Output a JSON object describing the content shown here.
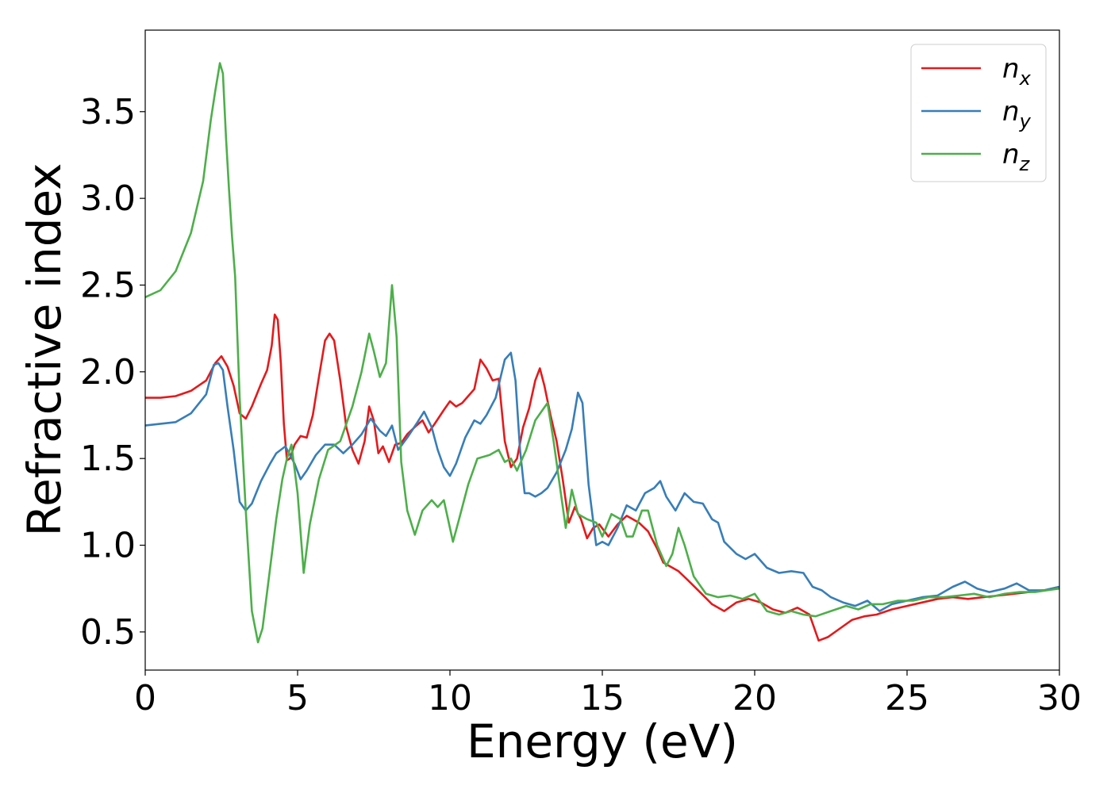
{
  "chart_data": {
    "type": "line",
    "title": "",
    "xlabel": "Energy (eV)",
    "ylabel": "Refractive index",
    "xlim": [
      0,
      30
    ],
    "ylim": [
      0.28,
      3.97
    ],
    "xticks": [
      "0",
      "5",
      "10",
      "15",
      "20",
      "25",
      "30"
    ],
    "yticks": [
      "0.5",
      "1.0",
      "1.5",
      "2.0",
      "2.5",
      "3.0",
      "3.5"
    ],
    "grid": false,
    "legend_position": "top-right",
    "series": [
      {
        "name": "n",
        "subscript": "x",
        "color": "#e41a1c",
        "points": [
          [
            0,
            1.85
          ],
          [
            0.5,
            1.85
          ],
          [
            1,
            1.86
          ],
          [
            1.5,
            1.89
          ],
          [
            2,
            1.95
          ],
          [
            2.3,
            2.05
          ],
          [
            2.5,
            2.09
          ],
          [
            2.7,
            2.03
          ],
          [
            2.9,
            1.92
          ],
          [
            3.1,
            1.76
          ],
          [
            3.3,
            1.73
          ],
          [
            3.5,
            1.8
          ],
          [
            3.8,
            1.93
          ],
          [
            4.0,
            2.01
          ],
          [
            4.15,
            2.15
          ],
          [
            4.25,
            2.33
          ],
          [
            4.35,
            2.3
          ],
          [
            4.45,
            2.05
          ],
          [
            4.55,
            1.7
          ],
          [
            4.65,
            1.49
          ],
          [
            4.75,
            1.5
          ],
          [
            4.9,
            1.58
          ],
          [
            5.1,
            1.63
          ],
          [
            5.3,
            1.62
          ],
          [
            5.5,
            1.75
          ],
          [
            5.7,
            1.97
          ],
          [
            5.9,
            2.18
          ],
          [
            6.05,
            2.22
          ],
          [
            6.2,
            2.18
          ],
          [
            6.4,
            1.95
          ],
          [
            6.6,
            1.68
          ],
          [
            6.8,
            1.55
          ],
          [
            7.0,
            1.47
          ],
          [
            7.2,
            1.6
          ],
          [
            7.35,
            1.8
          ],
          [
            7.5,
            1.72
          ],
          [
            7.65,
            1.53
          ],
          [
            7.8,
            1.57
          ],
          [
            8.0,
            1.48
          ],
          [
            8.2,
            1.58
          ],
          [
            8.4,
            1.59
          ],
          [
            8.6,
            1.64
          ],
          [
            8.9,
            1.69
          ],
          [
            9.1,
            1.72
          ],
          [
            9.3,
            1.65
          ],
          [
            9.5,
            1.7
          ],
          [
            9.8,
            1.78
          ],
          [
            10.0,
            1.83
          ],
          [
            10.2,
            1.8
          ],
          [
            10.4,
            1.82
          ],
          [
            10.6,
            1.86
          ],
          [
            10.8,
            1.9
          ],
          [
            11.0,
            2.07
          ],
          [
            11.2,
            2.02
          ],
          [
            11.4,
            1.95
          ],
          [
            11.6,
            1.96
          ],
          [
            11.8,
            1.6
          ],
          [
            12.0,
            1.45
          ],
          [
            12.2,
            1.5
          ],
          [
            12.4,
            1.68
          ],
          [
            12.6,
            1.79
          ],
          [
            12.8,
            1.95
          ],
          [
            12.95,
            2.02
          ],
          [
            13.1,
            1.92
          ],
          [
            13.3,
            1.75
          ],
          [
            13.5,
            1.6
          ],
          [
            13.7,
            1.38
          ],
          [
            13.9,
            1.13
          ],
          [
            14.1,
            1.22
          ],
          [
            14.3,
            1.15
          ],
          [
            14.5,
            1.04
          ],
          [
            14.7,
            1.1
          ],
          [
            14.9,
            1.12
          ],
          [
            15.2,
            1.05
          ],
          [
            15.5,
            1.12
          ],
          [
            15.8,
            1.17
          ],
          [
            16.0,
            1.15
          ],
          [
            16.2,
            1.13
          ],
          [
            16.5,
            1.08
          ],
          [
            16.8,
            0.98
          ],
          [
            17.0,
            0.9
          ],
          [
            17.2,
            0.88
          ],
          [
            17.5,
            0.85
          ],
          [
            17.8,
            0.8
          ],
          [
            18.2,
            0.73
          ],
          [
            18.6,
            0.66
          ],
          [
            19.0,
            0.62
          ],
          [
            19.4,
            0.67
          ],
          [
            19.8,
            0.69
          ],
          [
            20.2,
            0.67
          ],
          [
            20.6,
            0.63
          ],
          [
            21.0,
            0.61
          ],
          [
            21.4,
            0.64
          ],
          [
            21.8,
            0.6
          ],
          [
            22.1,
            0.45
          ],
          [
            22.4,
            0.47
          ],
          [
            22.8,
            0.52
          ],
          [
            23.2,
            0.57
          ],
          [
            23.6,
            0.59
          ],
          [
            24.0,
            0.6
          ],
          [
            24.5,
            0.63
          ],
          [
            25.0,
            0.65
          ],
          [
            25.5,
            0.67
          ],
          [
            26.0,
            0.69
          ],
          [
            26.5,
            0.7
          ],
          [
            27.0,
            0.69
          ],
          [
            27.5,
            0.7
          ],
          [
            28.0,
            0.71
          ],
          [
            28.5,
            0.72
          ],
          [
            29.0,
            0.73
          ],
          [
            29.5,
            0.74
          ],
          [
            30.0,
            0.76
          ]
        ]
      },
      {
        "name": "n",
        "subscript": "y",
        "color": "#377eb8",
        "points": [
          [
            0,
            1.69
          ],
          [
            0.5,
            1.7
          ],
          [
            1,
            1.71
          ],
          [
            1.5,
            1.76
          ],
          [
            2,
            1.87
          ],
          [
            2.25,
            2.04
          ],
          [
            2.4,
            2.05
          ],
          [
            2.55,
            2.01
          ],
          [
            2.7,
            1.8
          ],
          [
            2.9,
            1.55
          ],
          [
            3.1,
            1.25
          ],
          [
            3.3,
            1.2
          ],
          [
            3.5,
            1.24
          ],
          [
            3.8,
            1.37
          ],
          [
            4.1,
            1.47
          ],
          [
            4.3,
            1.53
          ],
          [
            4.6,
            1.57
          ],
          [
            4.9,
            1.47
          ],
          [
            5.1,
            1.38
          ],
          [
            5.3,
            1.43
          ],
          [
            5.6,
            1.52
          ],
          [
            5.9,
            1.58
          ],
          [
            6.2,
            1.58
          ],
          [
            6.5,
            1.53
          ],
          [
            6.8,
            1.58
          ],
          [
            7.1,
            1.64
          ],
          [
            7.4,
            1.73
          ],
          [
            7.7,
            1.66
          ],
          [
            7.9,
            1.63
          ],
          [
            8.1,
            1.69
          ],
          [
            8.3,
            1.55
          ],
          [
            8.6,
            1.62
          ],
          [
            8.9,
            1.7
          ],
          [
            9.15,
            1.77
          ],
          [
            9.4,
            1.68
          ],
          [
            9.6,
            1.55
          ],
          [
            9.8,
            1.45
          ],
          [
            10.0,
            1.4
          ],
          [
            10.2,
            1.47
          ],
          [
            10.5,
            1.62
          ],
          [
            10.8,
            1.72
          ],
          [
            11.0,
            1.7
          ],
          [
            11.2,
            1.75
          ],
          [
            11.5,
            1.85
          ],
          [
            11.8,
            2.07
          ],
          [
            12.0,
            2.11
          ],
          [
            12.15,
            1.95
          ],
          [
            12.3,
            1.55
          ],
          [
            12.45,
            1.3
          ],
          [
            12.6,
            1.3
          ],
          [
            12.8,
            1.28
          ],
          [
            13.0,
            1.3
          ],
          [
            13.2,
            1.33
          ],
          [
            13.5,
            1.42
          ],
          [
            13.8,
            1.55
          ],
          [
            14.0,
            1.67
          ],
          [
            14.2,
            1.88
          ],
          [
            14.35,
            1.82
          ],
          [
            14.55,
            1.35
          ],
          [
            14.8,
            1.0
          ],
          [
            15.0,
            1.02
          ],
          [
            15.2,
            1.0
          ],
          [
            15.5,
            1.1
          ],
          [
            15.8,
            1.23
          ],
          [
            16.1,
            1.2
          ],
          [
            16.4,
            1.3
          ],
          [
            16.7,
            1.33
          ],
          [
            16.9,
            1.37
          ],
          [
            17.1,
            1.28
          ],
          [
            17.4,
            1.2
          ],
          [
            17.7,
            1.3
          ],
          [
            18.0,
            1.25
          ],
          [
            18.3,
            1.24
          ],
          [
            18.6,
            1.15
          ],
          [
            18.8,
            1.13
          ],
          [
            19.0,
            1.02
          ],
          [
            19.4,
            0.95
          ],
          [
            19.7,
            0.92
          ],
          [
            20.0,
            0.95
          ],
          [
            20.4,
            0.87
          ],
          [
            20.8,
            0.84
          ],
          [
            21.2,
            0.85
          ],
          [
            21.6,
            0.84
          ],
          [
            21.9,
            0.76
          ],
          [
            22.2,
            0.74
          ],
          [
            22.5,
            0.7
          ],
          [
            22.9,
            0.67
          ],
          [
            23.3,
            0.65
          ],
          [
            23.7,
            0.68
          ],
          [
            24.1,
            0.62
          ],
          [
            24.5,
            0.66
          ],
          [
            25.0,
            0.68
          ],
          [
            25.5,
            0.7
          ],
          [
            26.0,
            0.71
          ],
          [
            26.5,
            0.76
          ],
          [
            26.9,
            0.79
          ],
          [
            27.3,
            0.75
          ],
          [
            27.7,
            0.73
          ],
          [
            28.2,
            0.75
          ],
          [
            28.6,
            0.78
          ],
          [
            29.0,
            0.74
          ],
          [
            29.5,
            0.74
          ],
          [
            30.0,
            0.76
          ]
        ]
      },
      {
        "name": "n",
        "subscript": "z",
        "color": "#4daf4a",
        "points": [
          [
            0,
            2.43
          ],
          [
            0.5,
            2.47
          ],
          [
            1.0,
            2.58
          ],
          [
            1.5,
            2.8
          ],
          [
            1.9,
            3.1
          ],
          [
            2.15,
            3.45
          ],
          [
            2.3,
            3.62
          ],
          [
            2.45,
            3.78
          ],
          [
            2.55,
            3.72
          ],
          [
            2.65,
            3.35
          ],
          [
            2.75,
            3.05
          ],
          [
            2.85,
            2.78
          ],
          [
            2.95,
            2.55
          ],
          [
            3.1,
            1.85
          ],
          [
            3.3,
            1.2
          ],
          [
            3.5,
            0.62
          ],
          [
            3.7,
            0.44
          ],
          [
            3.85,
            0.52
          ],
          [
            4.05,
            0.8
          ],
          [
            4.3,
            1.15
          ],
          [
            4.5,
            1.38
          ],
          [
            4.65,
            1.5
          ],
          [
            4.8,
            1.58
          ],
          [
            5.0,
            1.3
          ],
          [
            5.2,
            0.84
          ],
          [
            5.4,
            1.12
          ],
          [
            5.7,
            1.38
          ],
          [
            6.0,
            1.55
          ],
          [
            6.4,
            1.6
          ],
          [
            6.8,
            1.8
          ],
          [
            7.1,
            2.0
          ],
          [
            7.35,
            2.22
          ],
          [
            7.5,
            2.12
          ],
          [
            7.7,
            1.97
          ],
          [
            7.9,
            2.05
          ],
          [
            8.1,
            2.5
          ],
          [
            8.25,
            2.2
          ],
          [
            8.4,
            1.48
          ],
          [
            8.6,
            1.2
          ],
          [
            8.85,
            1.06
          ],
          [
            9.1,
            1.2
          ],
          [
            9.4,
            1.26
          ],
          [
            9.6,
            1.22
          ],
          [
            9.8,
            1.26
          ],
          [
            10.1,
            1.02
          ],
          [
            10.3,
            1.15
          ],
          [
            10.6,
            1.35
          ],
          [
            10.9,
            1.5
          ],
          [
            11.3,
            1.52
          ],
          [
            11.6,
            1.55
          ],
          [
            11.8,
            1.48
          ],
          [
            12.0,
            1.5
          ],
          [
            12.2,
            1.43
          ],
          [
            12.5,
            1.55
          ],
          [
            12.8,
            1.72
          ],
          [
            13.0,
            1.77
          ],
          [
            13.2,
            1.82
          ],
          [
            13.4,
            1.6
          ],
          [
            13.6,
            1.35
          ],
          [
            13.8,
            1.1
          ],
          [
            14.0,
            1.32
          ],
          [
            14.2,
            1.18
          ],
          [
            14.5,
            1.15
          ],
          [
            14.8,
            1.13
          ],
          [
            15.0,
            1.05
          ],
          [
            15.3,
            1.18
          ],
          [
            15.6,
            1.15
          ],
          [
            15.8,
            1.05
          ],
          [
            16.0,
            1.05
          ],
          [
            16.3,
            1.2
          ],
          [
            16.5,
            1.2
          ],
          [
            16.8,
            1.0
          ],
          [
            17.1,
            0.88
          ],
          [
            17.3,
            0.95
          ],
          [
            17.5,
            1.1
          ],
          [
            17.7,
            1.0
          ],
          [
            18.0,
            0.82
          ],
          [
            18.4,
            0.72
          ],
          [
            18.8,
            0.7
          ],
          [
            19.2,
            0.71
          ],
          [
            19.6,
            0.69
          ],
          [
            20.0,
            0.72
          ],
          [
            20.4,
            0.62
          ],
          [
            20.8,
            0.6
          ],
          [
            21.2,
            0.62
          ],
          [
            21.6,
            0.6
          ],
          [
            22.0,
            0.59
          ],
          [
            22.5,
            0.62
          ],
          [
            23.0,
            0.65
          ],
          [
            23.4,
            0.63
          ],
          [
            23.8,
            0.66
          ],
          [
            24.2,
            0.66
          ],
          [
            24.7,
            0.68
          ],
          [
            25.2,
            0.68
          ],
          [
            25.7,
            0.7
          ],
          [
            26.2,
            0.7
          ],
          [
            26.7,
            0.71
          ],
          [
            27.2,
            0.72
          ],
          [
            27.7,
            0.7
          ],
          [
            28.2,
            0.72
          ],
          [
            28.7,
            0.73
          ],
          [
            29.2,
            0.73
          ],
          [
            29.6,
            0.74
          ],
          [
            30.0,
            0.75
          ]
        ]
      }
    ]
  }
}
